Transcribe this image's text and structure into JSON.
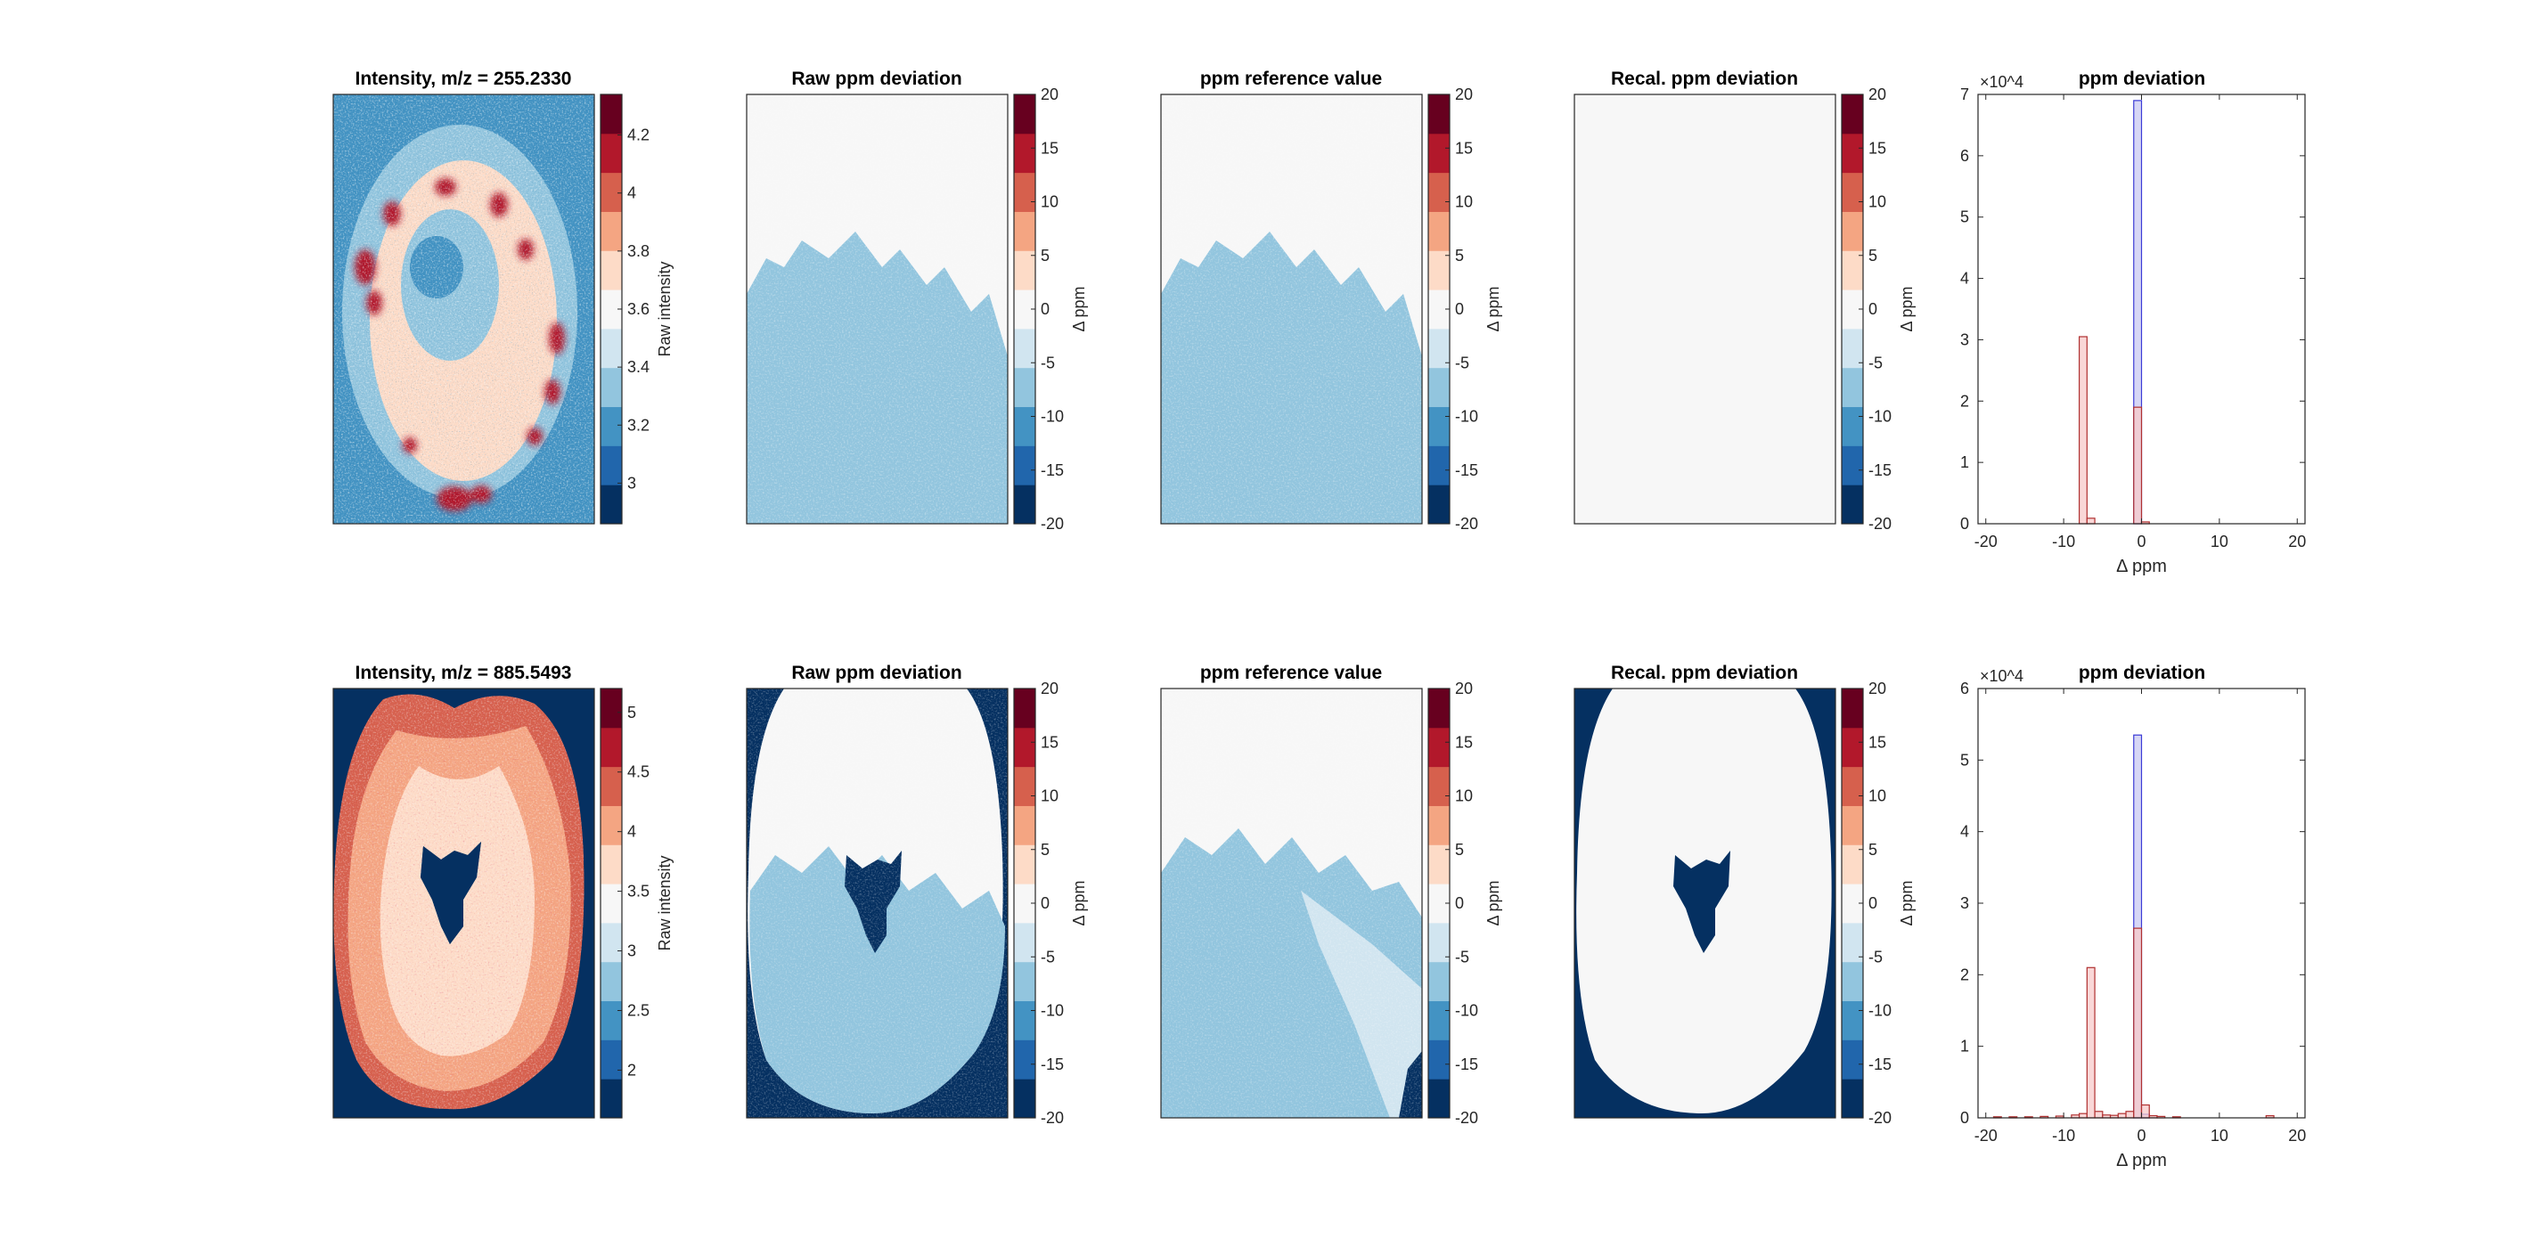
{
  "figure": {
    "rows": [
      {
        "intensity_title": "Intensity, m/z = 255.2330",
        "intensity_colorbar": {
          "label": "Raw intensity",
          "ticks": [
            "4.2",
            "4",
            "3.8",
            "3.6",
            "3.4",
            "3.2",
            "3"
          ],
          "values": [
            4.2,
            4.0,
            3.8,
            3.6,
            3.4,
            3.2,
            3.0
          ],
          "min": 2.86,
          "max": 4.34
        },
        "raw_title": "Raw ppm deviation",
        "ref_title": "ppm reference value",
        "recal_title": "Recal. ppm deviation",
        "ppm_colorbar": {
          "label": "Δ ppm",
          "ticks": [
            "20",
            "15",
            "10",
            "5",
            "0",
            "-5",
            "-10",
            "-15",
            "-20"
          ],
          "values": [
            20,
            15,
            10,
            5,
            0,
            -5,
            -10,
            -15,
            -20
          ],
          "min": -20,
          "max": 20
        },
        "hist_title": "ppm deviation"
      },
      {
        "intensity_title": "Intensity, m/z = 885.5493",
        "intensity_colorbar": {
          "label": "Raw intensity",
          "ticks": [
            "5",
            "4.5",
            "4",
            "3.5",
            "3",
            "2.5",
            "2"
          ],
          "values": [
            5,
            4.5,
            4,
            3.5,
            3,
            2.5,
            2
          ],
          "min": 1.6,
          "max": 5.2
        },
        "raw_title": "Raw ppm deviation",
        "ref_title": "ppm reference value",
        "recal_title": "Recal. ppm deviation",
        "ppm_colorbar": {
          "label": "Δ ppm",
          "ticks": [
            "20",
            "15",
            "10",
            "5",
            "0",
            "-5",
            "-10",
            "-15",
            "-20"
          ],
          "values": [
            20,
            15,
            10,
            5,
            0,
            -5,
            -10,
            -15,
            -20
          ],
          "min": -20,
          "max": 20
        },
        "hist_title": "ppm deviation"
      }
    ]
  },
  "colors": {
    "diverging": [
      "#053061",
      "#2166ac",
      "#4393c3",
      "#92c5de",
      "#d1e5f0",
      "#f7f7f7",
      "#fddbc7",
      "#f4a582",
      "#d6604d",
      "#b2182b",
      "#67001f"
    ],
    "light_blue": "#92c5de",
    "near_white": "#f7f7f7",
    "dark_navy": "#053061",
    "hist_blue_fill": "#c9c9f2",
    "hist_blue_edge": "#3b3bd6",
    "hist_red_fill": "#f7c9c9",
    "hist_red_edge": "#b03030"
  },
  "chart_data": [
    {
      "type": "bar",
      "title": "ppm deviation",
      "xlabel": "Δ ppm",
      "ylabel": "",
      "xlim": [
        -21,
        21
      ],
      "ylim": [
        0,
        70000
      ],
      "y_exponent": "×10^4",
      "xticks": [
        -20,
        -10,
        0,
        10,
        20
      ],
      "yticks": [
        0,
        1,
        2,
        3,
        4,
        5,
        6,
        7
      ],
      "series": [
        {
          "color": "#c9c9f2",
          "edge": "#3b3bd6",
          "bins": [
            [
              -1,
              0,
              69000
            ]
          ]
        },
        {
          "color": "#f7c9c9",
          "edge": "#b03030",
          "bins": [
            [
              -8,
              -7,
              30500
            ],
            [
              -7,
              -6,
              900
            ],
            [
              -1,
              0,
              19000
            ],
            [
              0,
              1,
              300
            ]
          ]
        }
      ]
    },
    {
      "type": "bar",
      "title": "ppm deviation",
      "xlabel": "Δ ppm",
      "ylabel": "",
      "xlim": [
        -21,
        21
      ],
      "ylim": [
        0,
        60000
      ],
      "y_exponent": "×10^4",
      "xticks": [
        -20,
        -10,
        0,
        10,
        20
      ],
      "yticks": [
        0,
        1,
        2,
        3,
        4,
        5,
        6
      ],
      "series": [
        {
          "color": "#c9c9f2",
          "edge": "#3b3bd6",
          "bins": [
            [
              -1,
              0,
              53500
            ],
            [
              0,
              1,
              500
            ]
          ]
        },
        {
          "color": "#f7c9c9",
          "edge": "#b03030",
          "bins": [
            [
              -19,
              -18,
              150
            ],
            [
              -17,
              -16,
              150
            ],
            [
              -15,
              -14,
              150
            ],
            [
              -13,
              -12,
              200
            ],
            [
              -11,
              -10,
              250
            ],
            [
              -9,
              -8,
              400
            ],
            [
              -8,
              -7,
              600
            ],
            [
              -7,
              -6,
              21000
            ],
            [
              -6,
              -5,
              900
            ],
            [
              -5,
              -4,
              400
            ],
            [
              -4,
              -3,
              350
            ],
            [
              -3,
              -2,
              600
            ],
            [
              -2,
              -1,
              900
            ],
            [
              -1,
              0,
              26500
            ],
            [
              0,
              1,
              1800
            ],
            [
              1,
              2,
              300
            ],
            [
              2,
              3,
              200
            ],
            [
              4,
              5,
              150
            ],
            [
              16,
              17,
              300
            ]
          ]
        }
      ]
    }
  ]
}
